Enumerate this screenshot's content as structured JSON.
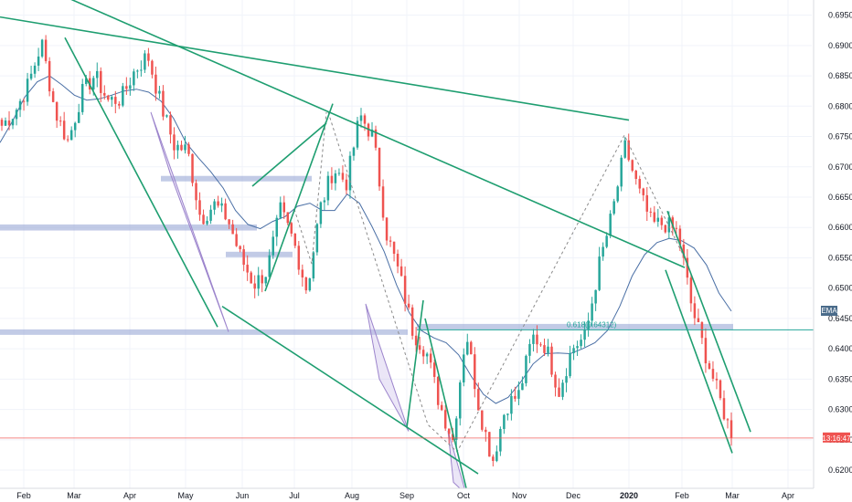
{
  "chart_data": {
    "type": "candlestick",
    "y_axis_side": "right",
    "ylim": [
      0.617,
      0.6975
    ],
    "y_ticks": [
      "0.69500",
      "0.69000",
      "0.68500",
      "0.68000",
      "0.67500",
      "0.67000",
      "0.66500",
      "0.66000",
      "0.65500",
      "0.65000",
      "0.64500",
      "0.64000",
      "0.63500",
      "0.63000",
      "0.62500",
      "0.62000"
    ],
    "x_ticks": [
      "Feb",
      "Mar",
      "Apr",
      "May",
      "Jun",
      "Jul",
      "Aug",
      "Sep",
      "Oct",
      "Nov",
      "Dec",
      "2020",
      "Feb",
      "Mar",
      "Apr"
    ],
    "x_tick_bold": "2020",
    "ema_badge": "EMA",
    "ema_value": "0.64400",
    "current_time_label": "13:16:47",
    "current_price": 0.6253,
    "fib_label": "0.618(0.64312)",
    "colors": {
      "up": "#26a69a",
      "down": "#ef5350",
      "ema": "#4a6fa5",
      "trendline": "#1e9e70",
      "zone": "#9aa9d6",
      "price_line": "#ef5350",
      "dashed": "#8a8a8a",
      "grid": "#f0f3fa"
    },
    "zones": [
      {
        "x_from": 0,
        "x_to": 281,
        "y_from": 0.6605,
        "y_to": 0.6595
      },
      {
        "x_from": 176,
        "x_to": 341,
        "y_from": 0.6685,
        "y_to": 0.6678
      },
      {
        "x_from": 247,
        "x_to": 320,
        "y_from": 0.656,
        "y_to": 0.6556
      },
      {
        "x_from": 0,
        "x_to": 446,
        "y_from": 0.6432,
        "y_to": 0.6423
      },
      {
        "x_from": 456,
        "x_to": 802,
        "y_from": 0.6441,
        "y_to": 0.6432
      }
    ],
    "ohlc_anchors": [
      [
        0.677,
        0.6768
      ],
      [
        0.6815,
        0.6791
      ],
      [
        0.6875,
        0.6836
      ],
      [
        0.6955,
        0.6905
      ],
      [
        0.689,
        0.6792
      ],
      [
        0.678,
        0.6741
      ],
      [
        0.687,
        0.682
      ],
      [
        0.6905,
        0.6851
      ],
      [
        0.687,
        0.6809
      ],
      [
        0.679,
        0.6812
      ],
      [
        0.6815,
        0.6858
      ],
      [
        0.6925,
        0.6884
      ],
      [
        0.683,
        0.6802
      ],
      [
        0.676,
        0.6735
      ],
      [
        0.672,
        0.6727
      ],
      [
        0.668,
        0.6614
      ],
      [
        0.66,
        0.6638
      ],
      [
        0.666,
        0.6616
      ],
      [
        0.66,
        0.6551
      ],
      [
        0.654,
        0.6506
      ],
      [
        0.65,
        0.6528
      ],
      [
        0.656,
        0.6628
      ],
      [
        0.6655,
        0.6577
      ],
      [
        0.654,
        0.6496
      ],
      [
        0.654,
        0.6631
      ],
      [
        0.672,
        0.6697
      ],
      [
        0.67,
        0.6674
      ],
      [
        0.674,
        0.6785
      ],
      [
        0.679,
        0.6749
      ],
      [
        0.665,
        0.6591
      ],
      [
        0.656,
        0.652
      ],
      [
        0.648,
        0.6428
      ],
      [
        0.642,
        0.6396
      ],
      [
        0.634,
        0.6309
      ],
      [
        0.628,
        0.625
      ],
      [
        0.639,
        0.6431
      ],
      [
        0.638,
        0.63
      ],
      [
        0.626,
        0.6215
      ],
      [
        0.628,
        0.6306
      ],
      [
        0.632,
        0.6325
      ],
      [
        0.638,
        0.642
      ],
      [
        0.642,
        0.6405
      ],
      [
        0.638,
        0.633
      ],
      [
        0.635,
        0.6401
      ],
      [
        0.641,
        0.642
      ],
      [
        0.645,
        0.6535
      ],
      [
        0.657,
        0.662
      ],
      [
        0.668,
        0.6733
      ],
      [
        0.671,
        0.666
      ],
      [
        0.664,
        0.6605
      ],
      [
        0.662,
        0.6606
      ],
      [
        0.66,
        0.6591
      ],
      [
        0.656,
        0.647
      ],
      [
        0.643,
        0.6395
      ],
      [
        0.635,
        0.6325
      ],
      [
        0.63,
        0.6258
      ]
    ],
    "ema_points": [
      [
        0.674
      ],
      [
        0.6775
      ],
      [
        0.6815
      ],
      [
        0.684
      ],
      [
        0.685
      ],
      [
        0.6835
      ],
      [
        0.6818
      ],
      [
        0.681
      ],
      [
        0.6812
      ],
      [
        0.6818
      ],
      [
        0.6825
      ],
      [
        0.6828
      ],
      [
        0.6823
      ],
      [
        0.6808
      ],
      [
        0.678
      ],
      [
        0.674
      ],
      [
        0.6715
      ],
      [
        0.6692
      ],
      [
        0.6665
      ],
      [
        0.6628
      ],
      [
        0.6605
      ],
      [
        0.6598
      ],
      [
        0.661
      ],
      [
        0.6618
      ],
      [
        0.6635
      ],
      [
        0.664
      ],
      [
        0.6628
      ],
      [
        0.6628
      ],
      [
        0.6655
      ],
      [
        0.664
      ],
      [
        0.6602
      ],
      [
        0.656
      ],
      [
        0.6505
      ],
      [
        0.646
      ],
      [
        0.643
      ],
      [
        0.6418
      ],
      [
        0.641
      ],
      [
        0.639
      ],
      [
        0.6355
      ],
      [
        0.6325
      ],
      [
        0.631
      ],
      [
        0.632
      ],
      [
        0.6345
      ],
      [
        0.6375
      ],
      [
        0.6392
      ],
      [
        0.6393
      ],
      [
        0.6392
      ],
      [
        0.64
      ],
      [
        0.641
      ],
      [
        0.643
      ],
      [
        0.647
      ],
      [
        0.652
      ],
      [
        0.6555
      ],
      [
        0.6575
      ],
      [
        0.6582
      ],
      [
        0.6578
      ],
      [
        0.6566
      ],
      [
        0.6538
      ],
      [
        0.6492
      ],
      [
        0.6462
      ]
    ],
    "trendlines": [
      {
        "from": [
          0,
          0.6947
        ],
        "to": [
          688,
          0.6777
        ]
      },
      {
        "from": [
          49,
          0.6995
        ],
        "to": [
          749,
          0.6534
        ]
      },
      {
        "from": [
          71,
          0.6913
        ],
        "to": [
          238,
          0.6436
        ]
      },
      {
        "from": [
          243,
          0.647
        ],
        "to": [
          523,
          0.6194
        ]
      },
      {
        "from": [
          276,
          0.6668
        ],
        "to": [
          357,
          0.6772
        ]
      },
      {
        "from": [
          290,
          0.6495
        ],
        "to": [
          364,
          0.6804
        ]
      },
      {
        "from": [
          445,
          0.627
        ],
        "to": [
          463,
          0.648
        ]
      },
      {
        "from": [
          465,
          0.645
        ],
        "to": [
          510,
          0.617
        ]
      },
      {
        "from": [
          730,
          0.6627
        ],
        "to": [
          821,
          0.6263
        ]
      },
      {
        "from": [
          728,
          0.653
        ],
        "to": [
          801,
          0.6228
        ]
      }
    ],
    "triangles": [
      [
        [
          165,
          0.679
        ],
        [
          186,
          0.669
        ],
        [
          250,
          0.6428
        ]
      ],
      [
        [
          400,
          0.6474
        ],
        [
          447,
          0.6264
        ],
        [
          415,
          0.635
        ]
      ],
      [
        [
          490,
          0.6265
        ],
        [
          510,
          0.616
        ],
        [
          496,
          0.618
        ]
      ]
    ],
    "dashed_paths": [
      [
        [
          359,
          0.679
        ],
        [
          468,
          0.6275
        ],
        [
          500,
          0.623
        ],
        [
          683,
          0.6752
        ],
        [
          752,
          0.654
        ]
      ],
      [
        [
          322,
          0.663
        ],
        [
          341,
          0.654
        ],
        [
          357,
          0.679
        ]
      ]
    ]
  }
}
